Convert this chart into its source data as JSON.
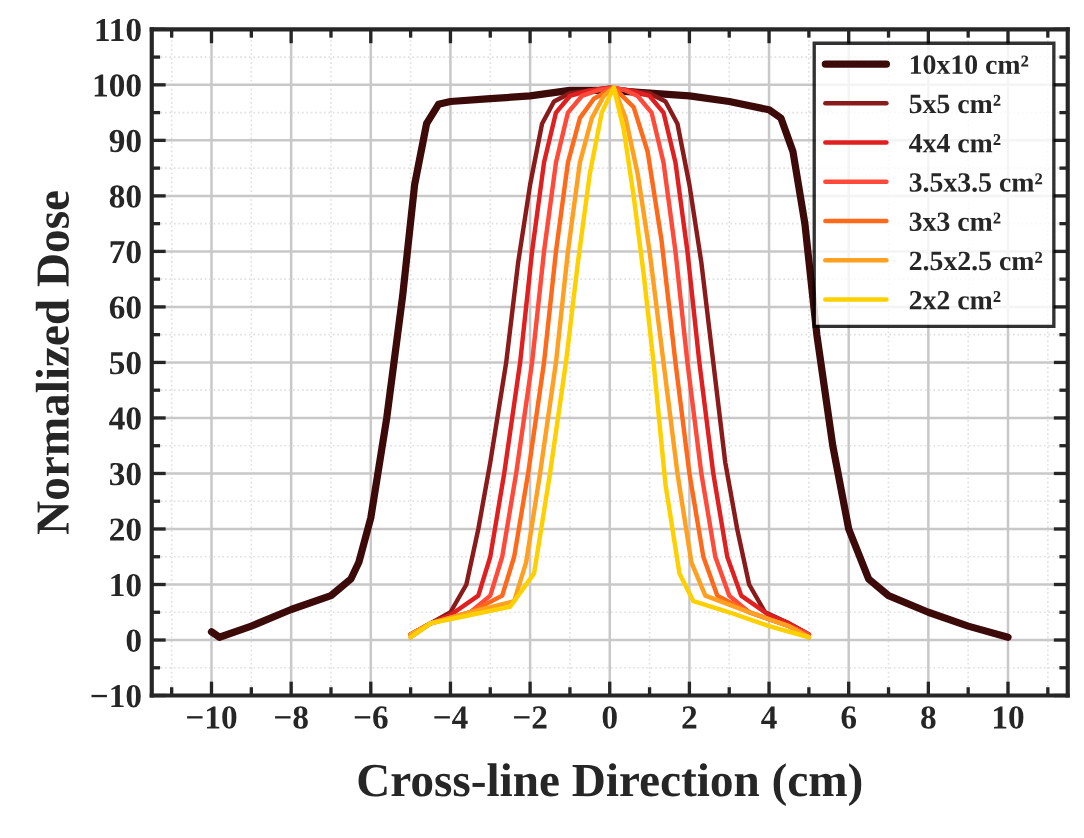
{
  "chart_data": {
    "type": "line",
    "xlabel": "Cross-line Direction (cm)",
    "ylabel": "Normalized Dose",
    "xlim": [
      -11.5,
      11.5
    ],
    "xticks": [
      -10,
      -8,
      -6,
      -4,
      -2,
      0,
      2,
      4,
      6,
      8,
      10
    ],
    "ylim": [
      -10,
      110
    ],
    "yticks": [
      -10,
      0,
      10,
      20,
      30,
      40,
      50,
      60,
      70,
      80,
      90,
      100,
      110
    ],
    "grid": true,
    "legend": "top right",
    "marker": "none",
    "line_style": "solid",
    "series": [
      {
        "name": "10x10 cm²",
        "color": "#3d0a0a",
        "x": [
          -10,
          -9.8,
          -9,
          -8,
          -7,
          -6.5,
          -6.3,
          -6.0,
          -5.6,
          -5.2,
          -4.9,
          -4.6,
          -4.3,
          -4,
          -3,
          -2,
          -1,
          0,
          1,
          2,
          3,
          4,
          4.3,
          4.6,
          4.9,
          5.2,
          5.6,
          6.0,
          6.5,
          7,
          8,
          9,
          10
        ],
        "values": [
          1.5,
          0.5,
          2.5,
          5.5,
          8,
          11,
          14,
          22,
          40,
          62,
          82,
          93,
          96.5,
          97,
          97.5,
          98,
          99,
          99,
          98.5,
          98,
          97,
          95.5,
          94,
          88,
          75,
          55,
          35,
          20,
          11,
          8,
          5,
          2.5,
          0.5
        ]
      },
      {
        "name": "5x5 cm²",
        "color": "#8b1a1a",
        "x": [
          -5,
          -4.5,
          -4,
          -3.6,
          -3.3,
          -3.0,
          -2.6,
          -2.3,
          -2.0,
          -1.7,
          -1.4,
          -1.0,
          -0.5,
          0,
          0.5,
          1.0,
          1.4,
          1.7,
          2.0,
          2.3,
          2.6,
          2.9,
          3.2,
          3.5,
          3.9,
          4.5,
          5
        ],
        "values": [
          1,
          3,
          5,
          10,
          20,
          32,
          50,
          68,
          82,
          93,
          97,
          98.5,
          99,
          99.5,
          99,
          98.5,
          97,
          93,
          82,
          68,
          50,
          32,
          20,
          10,
          5,
          3,
          1
        ]
      },
      {
        "name": "4x4 cm²",
        "color": "#e02020",
        "x": [
          -5,
          -4.5,
          -4,
          -3.3,
          -3.0,
          -2.65,
          -2.25,
          -1.95,
          -1.65,
          -1.35,
          -1.0,
          -0.5,
          0,
          0.5,
          1.0,
          1.35,
          1.65,
          1.95,
          2.25,
          2.6,
          2.95,
          3.3,
          4,
          4.5,
          5
        ],
        "values": [
          1,
          3,
          4.5,
          8,
          15,
          30,
          50,
          70,
          86,
          95,
          98,
          99,
          99.5,
          99,
          98,
          95,
          86,
          70,
          50,
          30,
          15,
          8,
          4.5,
          3,
          1
        ]
      },
      {
        "name": "3.5x3.5 cm²",
        "color": "#ff4a3a",
        "x": [
          -5,
          -4.5,
          -3.5,
          -3.0,
          -2.7,
          -2.35,
          -1.95,
          -1.65,
          -1.35,
          -1.05,
          -0.7,
          -0.3,
          0.1,
          0.4,
          0.7,
          1.05,
          1.35,
          1.65,
          1.95,
          2.3,
          2.65,
          3.0,
          3.5,
          4.5,
          5
        ],
        "values": [
          1,
          3,
          5,
          8,
          15,
          30,
          50,
          70,
          86,
          95,
          98,
          99,
          99.5,
          99,
          98,
          95,
          86,
          70,
          50,
          30,
          15,
          8,
          5,
          2.5,
          1
        ]
      },
      {
        "name": "3x3 cm²",
        "color": "#ff6a1a",
        "x": [
          -5,
          -4.5,
          -3.5,
          -2.7,
          -2.4,
          -2.05,
          -1.65,
          -1.35,
          -1.05,
          -0.75,
          -0.4,
          0.1,
          0.6,
          0.95,
          1.3,
          1.65,
          2.0,
          2.35,
          2.7,
          3.5,
          4.5,
          5
        ],
        "values": [
          0.5,
          3,
          5,
          8,
          15,
          30,
          50,
          70,
          86,
          94,
          97.5,
          99.5,
          96,
          88,
          72,
          50,
          30,
          15,
          8,
          5,
          2.5,
          0.5
        ]
      },
      {
        "name": "2.5x2.5 cm²",
        "color": "#ffa020",
        "x": [
          -5,
          -4.5,
          -3.5,
          -2.4,
          -2.1,
          -1.75,
          -1.35,
          -1.05,
          -0.75,
          -0.45,
          -0.15,
          0.1,
          0.4,
          0.7,
          1.0,
          1.35,
          1.7,
          2.05,
          2.4,
          3.5,
          4.5,
          5
        ],
        "values": [
          1,
          3,
          5,
          7,
          14,
          30,
          50,
          70,
          86,
          94,
          98,
          99.5,
          94,
          84,
          70,
          50,
          30,
          14,
          8,
          5,
          2.5,
          0.5
        ]
      },
      {
        "name": "2x2 cm²",
        "color": "#ffd000",
        "x": [
          -5,
          -4.5,
          -3.5,
          -2.5,
          -1.9,
          -1.5,
          -1.1,
          -0.8,
          -0.5,
          -0.2,
          0.1,
          0.35,
          0.6,
          0.85,
          1.1,
          1.4,
          1.75,
          2.1,
          3,
          4,
          5
        ],
        "values": [
          0.5,
          3,
          4.5,
          6,
          12,
          30,
          50,
          68,
          84,
          95,
          99.5,
          92,
          80,
          66,
          50,
          28,
          12,
          7,
          5,
          2.5,
          0.5
        ]
      }
    ]
  }
}
